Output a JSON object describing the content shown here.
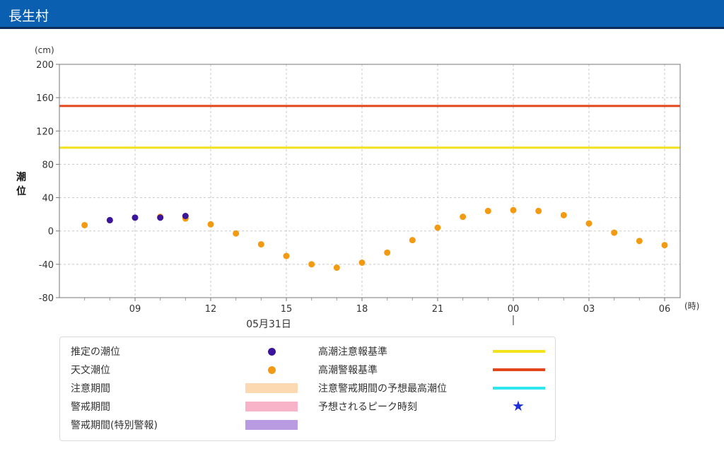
{
  "header": {
    "title": "長生村"
  },
  "chart_data": {
    "type": "scatter",
    "ylabel": "潮位",
    "yunit": "(cm)",
    "xunit": "(時)",
    "date_label": "05月31日",
    "ylim": [
      -80,
      200
    ],
    "yticks": [
      -80,
      -40,
      0,
      40,
      80,
      120,
      160,
      200
    ],
    "xtick_labels": [
      "09",
      "12",
      "15",
      "18",
      "21",
      "00",
      "03",
      "06"
    ],
    "grid": true,
    "series": [
      {
        "name": "天文潮位",
        "color": "#f29b12",
        "values": [
          7,
          13,
          16,
          17,
          15,
          8,
          -3,
          -16,
          -30,
          -40,
          -44,
          -38,
          -26,
          -11,
          4,
          17,
          24,
          25,
          24,
          19,
          9,
          -2,
          -12,
          -17
        ]
      },
      {
        "name": "推定の潮位",
        "color": "#3a159c",
        "values": [
          null,
          13,
          16,
          16,
          18
        ]
      }
    ],
    "reference_lines": [
      {
        "name": "高潮注意報基準",
        "value": 100,
        "color": "#f2e11b"
      },
      {
        "name": "高潮警報基準",
        "value": 150,
        "color": "#e3461b"
      }
    ]
  },
  "legend": {
    "left": [
      {
        "label": "推定の潮位",
        "kind": "dot",
        "color": "#3a159c"
      },
      {
        "label": "天文潮位",
        "kind": "dot",
        "color": "#f29b12"
      },
      {
        "label": "注意期間",
        "kind": "rect",
        "color": "#fcd9b0"
      },
      {
        "label": "警戒期間",
        "kind": "rect",
        "color": "#f9b3c8"
      },
      {
        "label": "警戒期間(特別警報)",
        "kind": "rect",
        "color": "#b89be0"
      }
    ],
    "right": [
      {
        "label": "高潮注意報基準",
        "kind": "line",
        "color": "#f2e11b"
      },
      {
        "label": "高潮警報基準",
        "kind": "line",
        "color": "#e3461b"
      },
      {
        "label": "注意警戒期間の予想最高潮位",
        "kind": "line",
        "color": "#2de6ee"
      },
      {
        "label": "予想されるピーク時刻",
        "kind": "star",
        "color": "#1d2fd6"
      }
    ]
  }
}
